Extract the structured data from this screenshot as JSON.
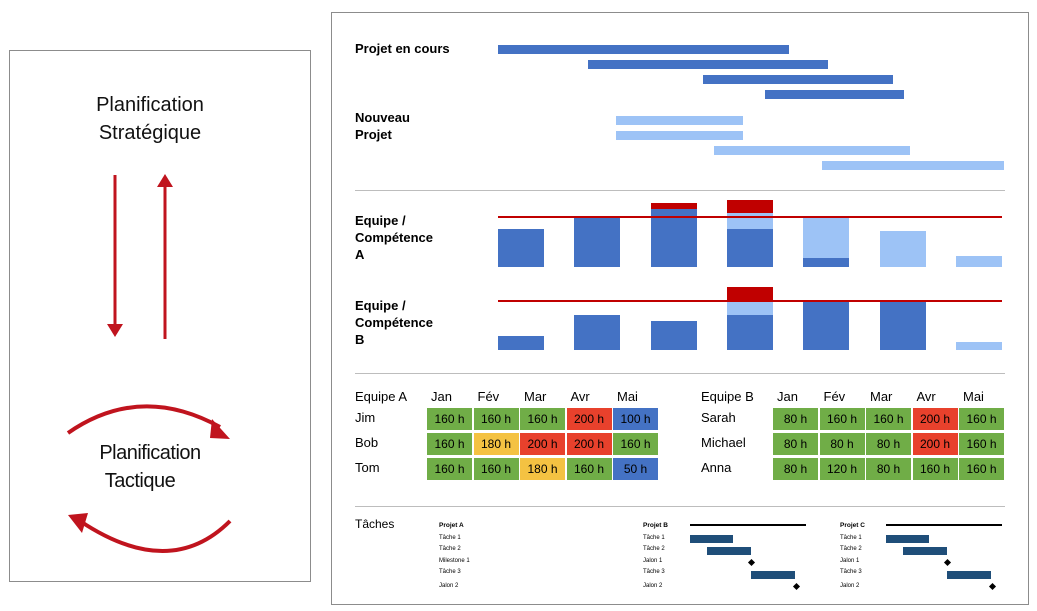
{
  "left": {
    "strategic_line1": "Planification",
    "strategic_line2": "Stratégique",
    "tactical_line1": "Planification",
    "tactical_line2": "Tactique"
  },
  "gantt": {
    "current_label": "Projet en cours",
    "new_label_line1": "Nouveau",
    "new_label_line2": "Projet"
  },
  "capacity": {
    "team_a_line1": "Equipe /",
    "team_a_line2": "Compétence",
    "team_a_line3": "A",
    "team_b_line1": "Equipe /",
    "team_b_line2": "Compétence",
    "team_b_line3": "B",
    "team_a_bars": [
      {
        "base": 0.52,
        "light": 0,
        "over": 0
      },
      {
        "base": 0.68,
        "light": 0,
        "over": 0
      },
      {
        "base": 0.78,
        "light": 0,
        "over": 0.08
      },
      {
        "base": 0.52,
        "light": 0.22,
        "over": 0.18
      },
      {
        "base": 0.12,
        "light": 0.55,
        "over": 0
      },
      {
        "base": 0,
        "light": 0.48,
        "over": 0
      },
      {
        "base": 0,
        "light": 0.15,
        "over": 0
      }
    ],
    "team_b_bars": [
      {
        "base": 0.2,
        "light": 0,
        "over": 0
      },
      {
        "base": 0.52,
        "light": 0,
        "over": 0
      },
      {
        "base": 0.42,
        "light": 0,
        "over": 0
      },
      {
        "base": 0.52,
        "light": 0.2,
        "over": 0.2
      },
      {
        "base": 0.72,
        "light": 0,
        "over": 0
      },
      {
        "base": 0.72,
        "light": 0,
        "over": 0
      },
      {
        "base": 0,
        "light": 0.12,
        "over": 0
      }
    ]
  },
  "colors": {
    "green": "#70ad47",
    "yellow": "#f4c242",
    "red": "#e8412c",
    "blue": "#4472c4",
    "dark_blue": "#4472c4",
    "light_blue": "#9dc3f6",
    "over_red": "#c00000"
  },
  "table_a": {
    "title": "Equipe A",
    "months": [
      "Jan",
      "Fév",
      "Mar",
      "Avr",
      "Mai"
    ],
    "rows": [
      {
        "name": "Jim",
        "cells": [
          {
            "v": "160 h",
            "c": "green"
          },
          {
            "v": "160 h",
            "c": "green"
          },
          {
            "v": "160 h",
            "c": "green"
          },
          {
            "v": "200 h",
            "c": "red"
          },
          {
            "v": "100 h",
            "c": "blue"
          }
        ]
      },
      {
        "name": "Bob",
        "cells": [
          {
            "v": "160 h",
            "c": "green"
          },
          {
            "v": "180 h",
            "c": "yellow"
          },
          {
            "v": "200 h",
            "c": "red"
          },
          {
            "v": "200 h",
            "c": "red"
          },
          {
            "v": "160 h",
            "c": "green"
          }
        ]
      },
      {
        "name": "Tom",
        "cells": [
          {
            "v": "160 h",
            "c": "green"
          },
          {
            "v": "160 h",
            "c": "green"
          },
          {
            "v": "180 h",
            "c": "yellow"
          },
          {
            "v": "160 h",
            "c": "green"
          },
          {
            "v": "50 h",
            "c": "blue"
          }
        ]
      }
    ]
  },
  "table_b": {
    "title": "Equipe B",
    "months": [
      "Jan",
      "Fév",
      "Mar",
      "Avr",
      "Mai"
    ],
    "rows": [
      {
        "name": "Sarah",
        "cells": [
          {
            "v": "80 h",
            "c": "green"
          },
          {
            "v": "160 h",
            "c": "green"
          },
          {
            "v": "160 h",
            "c": "green"
          },
          {
            "v": "200 h",
            "c": "red"
          },
          {
            "v": "160 h",
            "c": "green"
          }
        ]
      },
      {
        "name": "Michael",
        "cells": [
          {
            "v": "80 h",
            "c": "green"
          },
          {
            "v": "80 h",
            "c": "green"
          },
          {
            "v": "80 h",
            "c": "green"
          },
          {
            "v": "200 h",
            "c": "red"
          },
          {
            "v": "160 h",
            "c": "green"
          }
        ]
      },
      {
        "name": "Anna",
        "cells": [
          {
            "v": "80 h",
            "c": "green"
          },
          {
            "v": "120 h",
            "c": "green"
          },
          {
            "v": "80 h",
            "c": "green"
          },
          {
            "v": "160 h",
            "c": "green"
          },
          {
            "v": "160 h",
            "c": "green"
          }
        ]
      }
    ]
  },
  "tasks": {
    "label": "Tâches",
    "project_a": {
      "name": "Projet A",
      "rows": [
        "Tâche 1",
        "Tâche 2",
        "Milestone 1",
        "Tâche 3",
        "Jalon 2"
      ]
    },
    "project_b": {
      "name": "Projet B",
      "rows": [
        "Tâche 1",
        "Tâche 2",
        "Jalon 1",
        "Tâche 3",
        "Jalon 2"
      ]
    },
    "project_c": {
      "name": "Projet C",
      "rows": [
        "Tâche 1",
        "Tâche 2",
        "Jalon 1",
        "Tâche 3",
        "Jalon 2"
      ]
    }
  }
}
